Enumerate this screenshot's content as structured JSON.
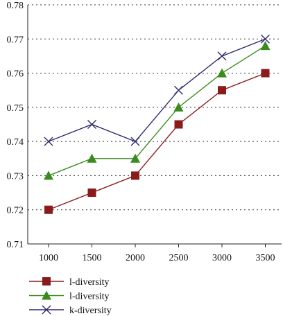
{
  "chart_data": {
    "type": "line",
    "x": [
      1000,
      1500,
      2000,
      2500,
      3000,
      3500
    ],
    "xticks": [
      "1000",
      "1500",
      "2000",
      "2500",
      "3000",
      "3500"
    ],
    "ylim": [
      0.71,
      0.78
    ],
    "yticks": [
      "0.71",
      "0.72",
      "0.73",
      "0.74",
      "0.75",
      "0.76",
      "0.77",
      "0.78"
    ],
    "grid": "horizontal dotted",
    "legend_position": "bottom-left",
    "series": [
      {
        "name": "l-diversity",
        "marker": "square",
        "color": "#8b1a1a",
        "values": [
          0.72,
          0.725,
          0.73,
          0.745,
          0.755,
          0.76
        ]
      },
      {
        "name": "l-diversity",
        "marker": "triangle",
        "color": "#3a8a1e",
        "values": [
          0.73,
          0.735,
          0.735,
          0.75,
          0.76,
          0.768
        ]
      },
      {
        "name": "k-diversity",
        "marker": "x",
        "color": "#2e2a6e",
        "values": [
          0.74,
          0.745,
          0.74,
          0.755,
          0.765,
          0.77
        ]
      }
    ]
  }
}
